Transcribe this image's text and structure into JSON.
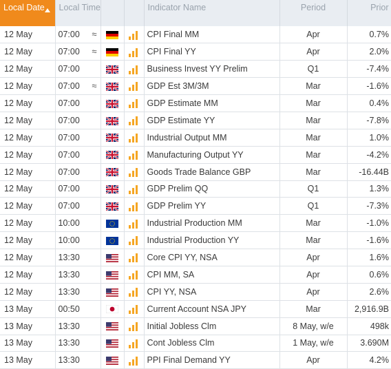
{
  "header": {
    "local_date": "Local Date",
    "local_time": "Local Time",
    "indicator_name": "Indicator Name",
    "period": "Period",
    "prior": "Prior"
  },
  "rows": [
    {
      "date": "12 May",
      "time": "07:00",
      "approx": "≈",
      "flag": "de-flag-icon",
      "importance": 3,
      "name": "CPI Final MM",
      "period": "Apr",
      "prior": "0.7%"
    },
    {
      "date": "12 May",
      "time": "07:00",
      "approx": "≈",
      "flag": "de-flag-icon",
      "importance": 3,
      "name": "CPI Final YY",
      "period": "Apr",
      "prior": "2.0%"
    },
    {
      "date": "12 May",
      "time": "07:00",
      "approx": "",
      "flag": "uk-flag-icon",
      "importance": 3,
      "name": "Business Invest YY Prelim",
      "period": "Q1",
      "prior": "-7.4%"
    },
    {
      "date": "12 May",
      "time": "07:00",
      "approx": "≈",
      "flag": "uk-flag-icon",
      "importance": 3,
      "name": "GDP Est 3M/3M",
      "period": "Mar",
      "prior": "-1.6%"
    },
    {
      "date": "12 May",
      "time": "07:00",
      "approx": "",
      "flag": "uk-flag-icon",
      "importance": 3,
      "name": "GDP Estimate MM",
      "period": "Mar",
      "prior": "0.4%"
    },
    {
      "date": "12 May",
      "time": "07:00",
      "approx": "",
      "flag": "uk-flag-icon",
      "importance": 3,
      "name": "GDP Estimate YY",
      "period": "Mar",
      "prior": "-7.8%"
    },
    {
      "date": "12 May",
      "time": "07:00",
      "approx": "",
      "flag": "uk-flag-icon",
      "importance": 3,
      "name": "Industrial Output MM",
      "period": "Mar",
      "prior": "1.0%"
    },
    {
      "date": "12 May",
      "time": "07:00",
      "approx": "",
      "flag": "uk-flag-icon",
      "importance": 3,
      "name": "Manufacturing Output YY",
      "period": "Mar",
      "prior": "-4.2%"
    },
    {
      "date": "12 May",
      "time": "07:00",
      "approx": "",
      "flag": "uk-flag-icon",
      "importance": 3,
      "name": "Goods Trade Balance GBP",
      "period": "Mar",
      "prior": "-16.44B"
    },
    {
      "date": "12 May",
      "time": "07:00",
      "approx": "",
      "flag": "uk-flag-icon",
      "importance": 3,
      "name": "GDP Prelim QQ",
      "period": "Q1",
      "prior": "1.3%"
    },
    {
      "date": "12 May",
      "time": "07:00",
      "approx": "",
      "flag": "uk-flag-icon",
      "importance": 3,
      "name": "GDP Prelim YY",
      "period": "Q1",
      "prior": "-7.3%"
    },
    {
      "date": "12 May",
      "time": "10:00",
      "approx": "",
      "flag": "eu-flag-icon",
      "importance": 3,
      "name": "Industrial Production MM",
      "period": "Mar",
      "prior": "-1.0%"
    },
    {
      "date": "12 May",
      "time": "10:00",
      "approx": "",
      "flag": "eu-flag-icon",
      "importance": 3,
      "name": "Industrial Production YY",
      "period": "Mar",
      "prior": "-1.6%"
    },
    {
      "date": "12 May",
      "time": "13:30",
      "approx": "",
      "flag": "us-flag-icon",
      "importance": 3,
      "name": "Core CPI YY, NSA",
      "period": "Apr",
      "prior": "1.6%"
    },
    {
      "date": "12 May",
      "time": "13:30",
      "approx": "",
      "flag": "us-flag-icon",
      "importance": 3,
      "name": "CPI MM, SA",
      "period": "Apr",
      "prior": "0.6%"
    },
    {
      "date": "12 May",
      "time": "13:30",
      "approx": "",
      "flag": "us-flag-icon",
      "importance": 3,
      "name": "CPI YY, NSA",
      "period": "Apr",
      "prior": "2.6%"
    },
    {
      "date": "13 May",
      "time": "00:50",
      "approx": "",
      "flag": "jp-flag-icon",
      "importance": 3,
      "name": "Current Account NSA JPY",
      "period": "Mar",
      "prior": "2,916.9B"
    },
    {
      "date": "13 May",
      "time": "13:30",
      "approx": "",
      "flag": "us-flag-icon",
      "importance": 3,
      "name": "Initial Jobless Clm",
      "period": "8 May, w/e",
      "prior": "498k"
    },
    {
      "date": "13 May",
      "time": "13:30",
      "approx": "",
      "flag": "us-flag-icon",
      "importance": 3,
      "name": "Cont Jobless Clm",
      "period": "1 May, w/e",
      "prior": "3.690M"
    },
    {
      "date": "13 May",
      "time": "13:30",
      "approx": "",
      "flag": "us-flag-icon",
      "importance": 3,
      "name": "PPI Final Demand YY",
      "period": "Apr",
      "prior": "4.2%"
    }
  ],
  "colors": {
    "accent": "#f08a1c",
    "header_bg": "#e9edf2",
    "importance_bar": "#f5a623",
    "importance_bar_dim": "#f9d8a4"
  }
}
